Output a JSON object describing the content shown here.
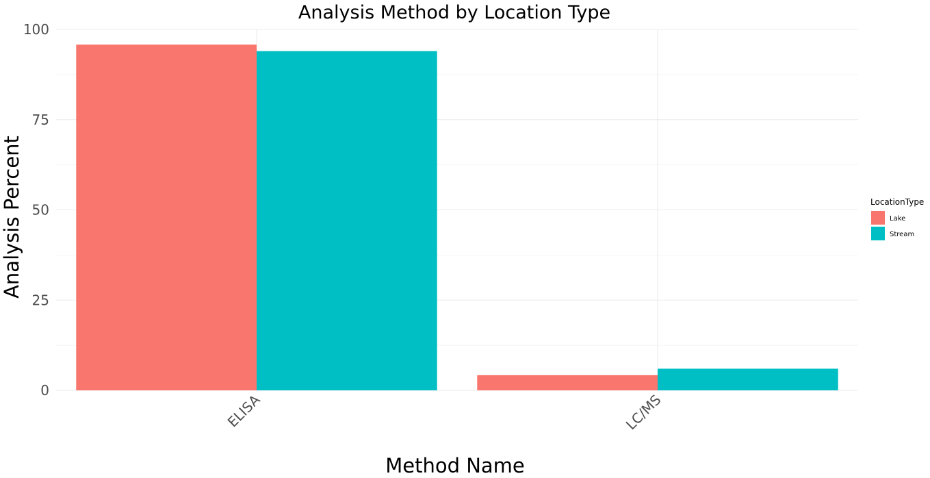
{
  "chart_data": {
    "type": "bar",
    "title": "Analysis Method by Location Type",
    "xlabel": "Method Name",
    "ylabel": "Analysis Percent",
    "categories": [
      "ELISA",
      "LC/MS"
    ],
    "series": [
      {
        "name": "Lake",
        "color": "#F8766D",
        "values": [
          95.8,
          4.2
        ]
      },
      {
        "name": "Stream",
        "color": "#00BFC4",
        "values": [
          94.0,
          6.0
        ]
      }
    ],
    "ylim": [
      0,
      100
    ],
    "yticks": [
      0,
      25,
      50,
      75,
      100
    ],
    "grid": true,
    "legend": {
      "title": "LocationType",
      "position": "right"
    }
  }
}
